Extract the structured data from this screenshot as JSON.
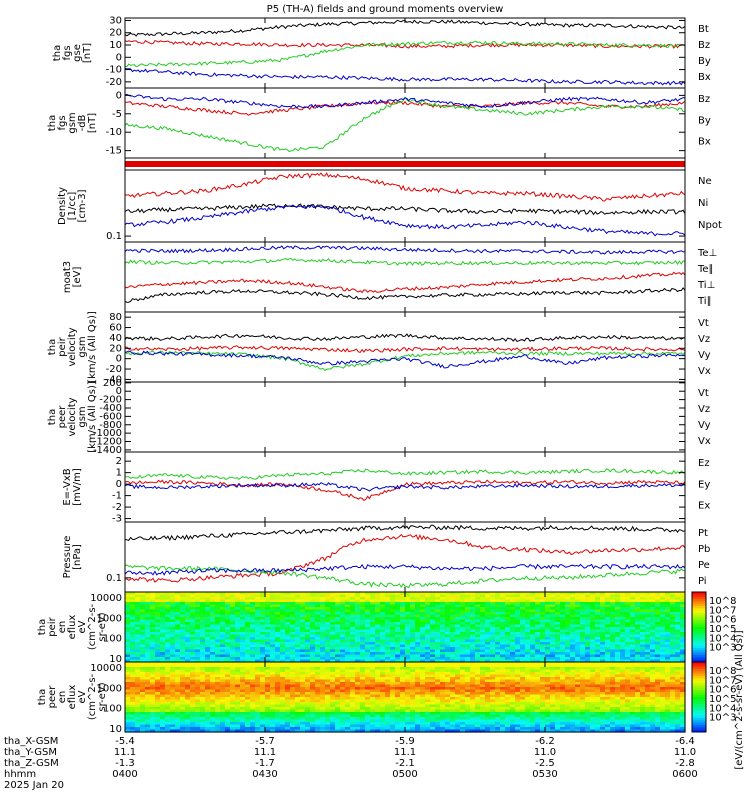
{
  "title": "P5 (TH-A) fields and ground moments overview",
  "colors": {
    "black": "#000000",
    "red": "#e00000",
    "green": "#22cc22",
    "blue": "#0000cc"
  },
  "chart_data": [
    {
      "type": "line",
      "id": "p1",
      "ylabel": [
        "tha",
        "fgs",
        "gse",
        "[nT]"
      ],
      "yticks": [
        30,
        20,
        10,
        0,
        -10,
        -20
      ],
      "ylim": [
        -25,
        32
      ],
      "series": [
        {
          "name": "Bt",
          "color": "#000000",
          "values": [
            18,
            19,
            20,
            22,
            25,
            27,
            28,
            29,
            29,
            28,
            27,
            26,
            26,
            25,
            24
          ]
        },
        {
          "name": "Bz",
          "color": "#e00000",
          "values": [
            13,
            12,
            11,
            11,
            10,
            10,
            10,
            9,
            9,
            10,
            10,
            10,
            9,
            9,
            9
          ]
        },
        {
          "name": "By",
          "color": "#22cc22",
          "values": [
            -7,
            -6,
            -5,
            -4,
            -2,
            5,
            10,
            11,
            12,
            12,
            11,
            11,
            10,
            10,
            9
          ]
        },
        {
          "name": "Bx",
          "color": "#0000cc",
          "values": [
            -10,
            -12,
            -14,
            -15,
            -16,
            -16,
            -17,
            -18,
            -18,
            -18,
            -19,
            -20,
            -20,
            -21,
            -21
          ]
        }
      ]
    },
    {
      "type": "line",
      "id": "p2",
      "ylabel": [
        "tha",
        "fgs",
        "gsm",
        "-dB",
        "[nT]"
      ],
      "yticks": [
        0,
        -5,
        -10,
        -15
      ],
      "ylim": [
        -17,
        2
      ],
      "series": [
        {
          "name": "Bz",
          "color": "#e00000",
          "values": [
            -2,
            -3,
            -4,
            -5,
            -4,
            -3,
            -2,
            -2,
            -3,
            -3,
            -2,
            -2,
            -3,
            -3,
            -2
          ]
        },
        {
          "name": "By",
          "color": "#22cc22",
          "values": [
            -8,
            -9,
            -11,
            -13,
            -15,
            -14,
            -6,
            -1,
            -3,
            -4,
            -5,
            -4,
            -3,
            -3,
            -4
          ]
        },
        {
          "name": "Bx",
          "color": "#0000cc",
          "values": [
            0,
            -1,
            -1,
            -2,
            -3,
            -3,
            -2,
            -1,
            -2,
            -3,
            -2,
            -1,
            -1,
            -2,
            -1
          ]
        }
      ]
    },
    {
      "type": "line",
      "id": "p3",
      "log": true,
      "ylabel": [
        "Density",
        "[1/cc]",
        "[cm-3]"
      ],
      "yticks": [
        0.1
      ],
      "ylim": [
        0.08,
        1.2
      ],
      "series": [
        {
          "name": "Ne",
          "color": "#e00000",
          "values": [
            0.45,
            0.5,
            0.55,
            0.7,
            0.95,
            1.0,
            0.85,
            0.6,
            0.55,
            0.5,
            0.5,
            0.45,
            0.4,
            0.45,
            0.5
          ]
        },
        {
          "name": "Ni",
          "color": "#000000",
          "values": [
            0.25,
            0.27,
            0.28,
            0.3,
            0.32,
            0.3,
            0.28,
            0.28,
            0.26,
            0.25,
            0.26,
            0.25,
            0.24,
            0.25,
            0.25
          ]
        },
        {
          "name": "Npot",
          "color": "#0000cc",
          "values": [
            0.15,
            0.17,
            0.2,
            0.25,
            0.3,
            0.3,
            0.2,
            0.15,
            0.14,
            0.15,
            0.17,
            0.14,
            0.12,
            0.11,
            0.11
          ]
        }
      ]
    },
    {
      "type": "line",
      "id": "p4",
      "ylabel": [
        "moat3",
        "[eV]"
      ],
      "yticks": [],
      "ylim": [
        0,
        10
      ],
      "series": [
        {
          "name": "Te⊥",
          "color": "#0000cc",
          "values": [
            8.8,
            8.7,
            8.8,
            9.0,
            9.2,
            9.2,
            9.1,
            8.9,
            8.8,
            8.7,
            8.7,
            8.6,
            8.5,
            8.6,
            8.6
          ]
        },
        {
          "name": "Te∥",
          "color": "#000000",
          "values": [
            1.5,
            2.5,
            2.8,
            3.0,
            2.8,
            2.5,
            2.0,
            2.2,
            2.4,
            2.5,
            2.6,
            2.8,
            2.7,
            3.0,
            3.2
          ]
        },
        {
          "name": "Ti⊥",
          "color": "#e00000",
          "values": [
            3.5,
            4.0,
            4.2,
            4.5,
            4.2,
            3.6,
            2.9,
            3.3,
            3.5,
            4.0,
            4.3,
            4.6,
            4.8,
            5.2,
            5.5
          ]
        },
        {
          "name": "Ti∥",
          "color": "#22cc22",
          "values": [
            7.2,
            7.0,
            7.1,
            7.2,
            7.4,
            7.4,
            7.1,
            6.9,
            7.0,
            7.0,
            7.0,
            7.0,
            7.0,
            7.0,
            7.1
          ]
        }
      ]
    },
    {
      "type": "line",
      "id": "p5",
      "ylabel": [
        "tha",
        "peir",
        "velocity",
        "gsm",
        "[km/s (All Qs)]"
      ],
      "yticks": [
        80,
        60,
        40,
        20,
        0,
        -20,
        -40
      ],
      "ylim": [
        -45,
        90
      ],
      "series": [
        {
          "name": "Vt",
          "color": "#000000",
          "values": [
            40,
            38,
            42,
            45,
            40,
            38,
            42,
            45,
            40,
            38,
            36,
            40,
            42,
            40,
            38
          ]
        },
        {
          "name": "Vz",
          "color": "#e00000",
          "values": [
            20,
            18,
            20,
            22,
            20,
            18,
            15,
            18,
            20,
            18,
            18,
            20,
            20,
            18,
            18
          ]
        },
        {
          "name": "Vy",
          "color": "#22cc22",
          "values": [
            10,
            12,
            10,
            8,
            0,
            -20,
            -10,
            5,
            10,
            12,
            10,
            10,
            10,
            10,
            10
          ]
        },
        {
          "name": "Vx",
          "color": "#0000cc",
          "values": [
            12,
            10,
            8,
            6,
            2,
            -10,
            -5,
            0,
            -15,
            -5,
            5,
            -10,
            2,
            5,
            8
          ]
        }
      ]
    },
    {
      "type": "line",
      "id": "p6",
      "ylabel": [
        "tha",
        "peer",
        "velocity",
        "gsm",
        "[km/s (All Qs)]"
      ],
      "yticks": [
        200,
        0,
        -200,
        -400,
        -600,
        -800,
        -1000,
        -1200,
        -1400
      ],
      "ylim": [
        -1450,
        220
      ],
      "series": [
        {
          "name": "Vt",
          "color": "#000000",
          "values": []
        },
        {
          "name": "Vz",
          "color": "#e00000",
          "values": []
        },
        {
          "name": "Vy",
          "color": "#22cc22",
          "values": []
        },
        {
          "name": "Vx",
          "color": "#0000cc",
          "values": []
        }
      ]
    },
    {
      "type": "line",
      "id": "p7",
      "ylabel": [
        "E=-VxB",
        "[mV/m]"
      ],
      "yticks": [
        2,
        1,
        0,
        -1,
        -2,
        -3
      ],
      "ylim": [
        -3.3,
        2.8
      ],
      "series": [
        {
          "name": "Ez",
          "color": "#e00000",
          "values": [
            0.1,
            0.2,
            0.1,
            -0.1,
            0.0,
            -0.5,
            -1.3,
            0.0,
            0.1,
            0.2,
            0.1,
            0.2,
            0.1,
            0.2,
            0.1
          ]
        },
        {
          "name": "Ey",
          "color": "#22cc22",
          "values": [
            0.5,
            0.8,
            0.6,
            0.5,
            0.8,
            0.9,
            1.2,
            0.9,
            1.0,
            1.1,
            1.0,
            1.1,
            1.2,
            1.1,
            1.0
          ]
        },
        {
          "name": "Ex",
          "color": "#0000cc",
          "values": [
            -0.2,
            -0.3,
            -0.2,
            -0.1,
            -0.1,
            0.0,
            -0.5,
            -0.2,
            -0.3,
            -0.2,
            -0.1,
            -0.2,
            -0.2,
            -0.1,
            -0.1
          ]
        }
      ]
    },
    {
      "type": "line",
      "id": "p8",
      "log": true,
      "ylabel": [
        "Pressure",
        "[nPa]"
      ],
      "yticks": [
        0.1
      ],
      "ylim": [
        0.06,
        0.75
      ],
      "series": [
        {
          "name": "Pt",
          "color": "#000000",
          "values": [
            0.4,
            0.42,
            0.45,
            0.48,
            0.52,
            0.55,
            0.6,
            0.62,
            0.62,
            0.6,
            0.6,
            0.62,
            0.6,
            0.58,
            0.55
          ]
        },
        {
          "name": "Pb",
          "color": "#e00000",
          "values": [
            0.1,
            0.09,
            0.1,
            0.11,
            0.12,
            0.2,
            0.4,
            0.45,
            0.4,
            0.3,
            0.28,
            0.25,
            0.27,
            0.28,
            0.3
          ]
        },
        {
          "name": "Pe",
          "color": "#22cc22",
          "values": [
            0.15,
            0.14,
            0.14,
            0.13,
            0.12,
            0.1,
            0.08,
            0.075,
            0.08,
            0.09,
            0.1,
            0.1,
            0.11,
            0.12,
            0.13
          ]
        },
        {
          "name": "Pi",
          "color": "#0000cc",
          "values": [
            0.12,
            0.12,
            0.13,
            0.13,
            0.13,
            0.14,
            0.15,
            0.15,
            0.14,
            0.14,
            0.15,
            0.15,
            0.15,
            0.15,
            0.15
          ]
        }
      ]
    },
    {
      "type": "heatmap",
      "id": "p9",
      "ylabel": [
        "tha",
        "peir",
        "en",
        "eflux",
        "eV",
        "(cm^2-s-",
        "sr-eV)"
      ],
      "yticks": [
        10000,
        1000,
        100,
        10
      ],
      "ylim": [
        7,
        20000
      ],
      "colorbar": {
        "ticks": [
          "10^8",
          "10^7",
          "10^6",
          "10^5",
          "10^4",
          "10^3"
        ],
        "label": "[eV/(cm^2-s-sr-eV)] (All Qs)]"
      }
    },
    {
      "type": "heatmap",
      "id": "p10",
      "ylabel": [
        "tha",
        "peer",
        "en",
        "eflux",
        "eV",
        "(cm^2-s-",
        "sr-eV)"
      ],
      "yticks": [
        10000,
        1000,
        100,
        10
      ],
      "ylim": [
        7,
        20000
      ],
      "colorbar": {
        "ticks": [
          "10^8",
          "10^7",
          "10^6",
          "10^5",
          "10^4",
          "10^3"
        ],
        "label": "[eV/(cm^2-s-sr-eV)] (All Qs)]"
      }
    }
  ],
  "legends": [
    [
      "Bt",
      "Bz",
      "By",
      "Bx"
    ],
    [
      "Bz",
      "By",
      "Bx"
    ],
    [
      "Ne",
      "Ni",
      "Npot"
    ],
    [
      "Te⊥",
      "Te∥",
      "Ti⊥",
      "Ti∥"
    ],
    [
      "Vt",
      "Vz",
      "Vy",
      "Vx"
    ],
    [
      "Vt",
      "Vz",
      "Vy",
      "Vx"
    ],
    [
      "Ez",
      "Ey",
      "Ex"
    ],
    [
      "Pt",
      "Pb",
      "Pe",
      "Pi"
    ]
  ],
  "footer": {
    "rows": [
      {
        "label": "tha_X-GSM",
        "values": [
          "-5.4",
          "-5.7",
          "-5.9",
          "-6.2",
          "-6.4"
        ]
      },
      {
        "label": "tha_Y-GSM",
        "values": [
          "11.1",
          "11.1",
          "11.1",
          "11.0",
          "11.0"
        ]
      },
      {
        "label": "tha_Z-GSM",
        "values": [
          "-1.3",
          "-1.7",
          "-2.1",
          "-2.5",
          "-2.8"
        ]
      },
      {
        "label": "hhmm",
        "values": [
          "0400",
          "0430",
          "0500",
          "0530",
          "0600"
        ]
      }
    ],
    "date": "2025 Jan 20"
  },
  "colorbar_label": "[eV/(cm^2-s-sr-eV) (All Qs)]"
}
